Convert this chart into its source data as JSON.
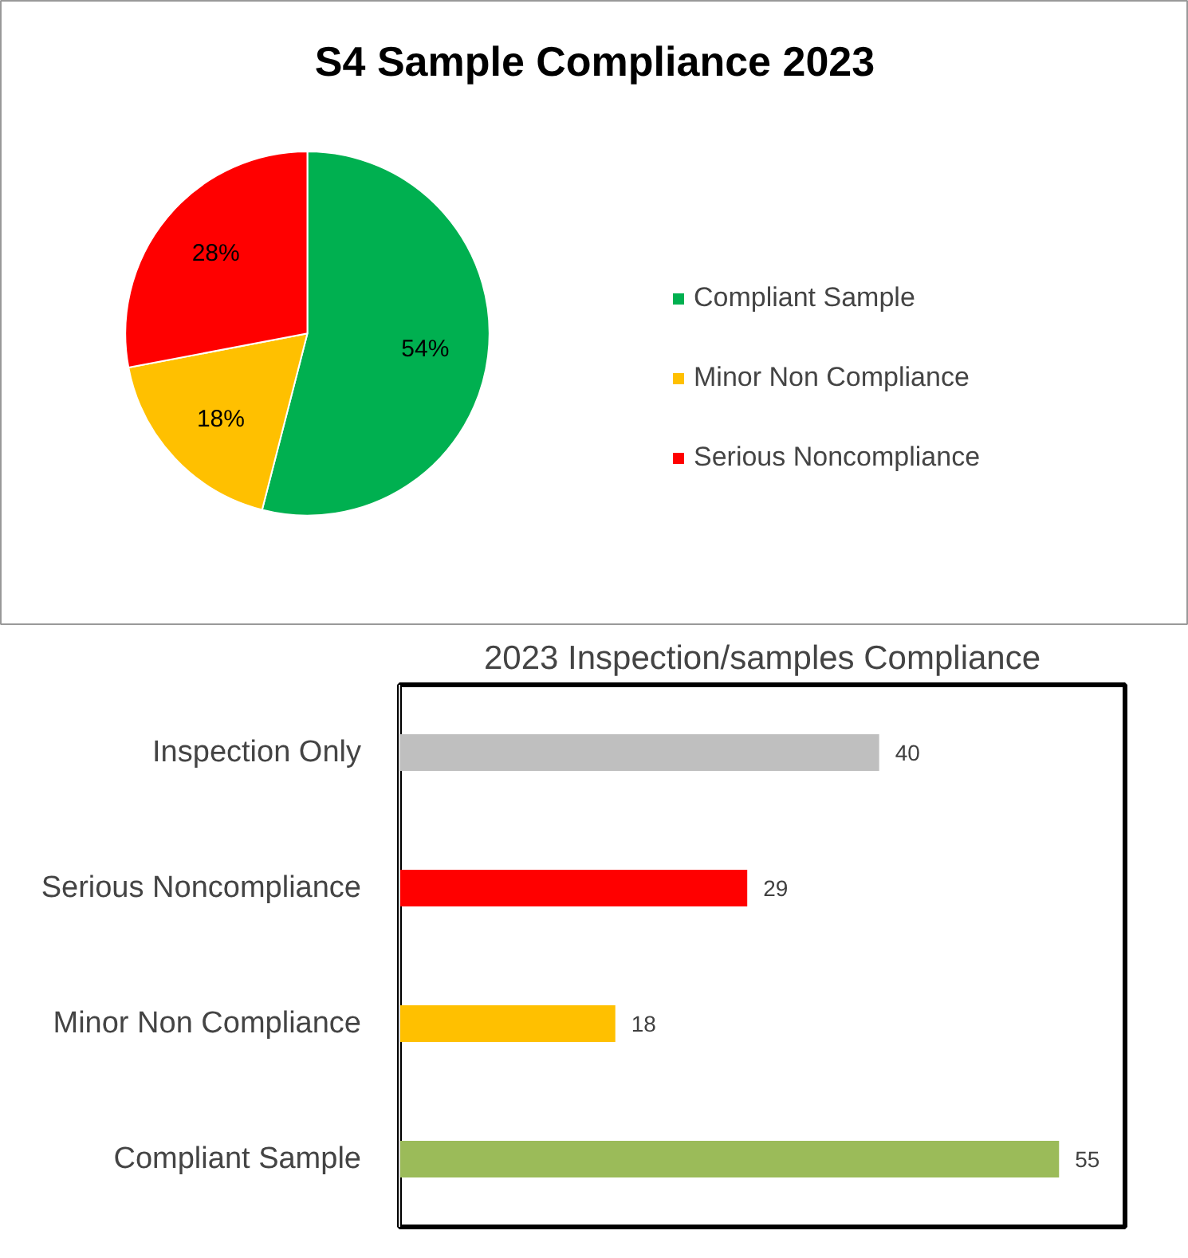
{
  "chart_data": [
    {
      "type": "pie",
      "title": "S4 Sample Compliance 2023",
      "categories": [
        "Compliant Sample",
        "Minor Non Compliance",
        "Serious Noncompliance"
      ],
      "values": [
        54,
        18,
        28
      ],
      "colors": [
        "#00b050",
        "#ffc000",
        "#ff0000"
      ],
      "value_labels": [
        "54%",
        "18%",
        "28%"
      ],
      "legend": "right"
    },
    {
      "type": "bar",
      "orientation": "horizontal",
      "title": "2023 Inspection/samples Compliance",
      "categories": [
        "Inspection Only",
        "Serious Noncompliance",
        "Minor Non Compliance",
        "Compliant Sample"
      ],
      "values": [
        40,
        29,
        18,
        55
      ],
      "colors": [
        "#bfbfbf",
        "#ff0000",
        "#ffc000",
        "#9bbb59"
      ],
      "data_labels": true,
      "grid": false,
      "legend": false
    }
  ]
}
